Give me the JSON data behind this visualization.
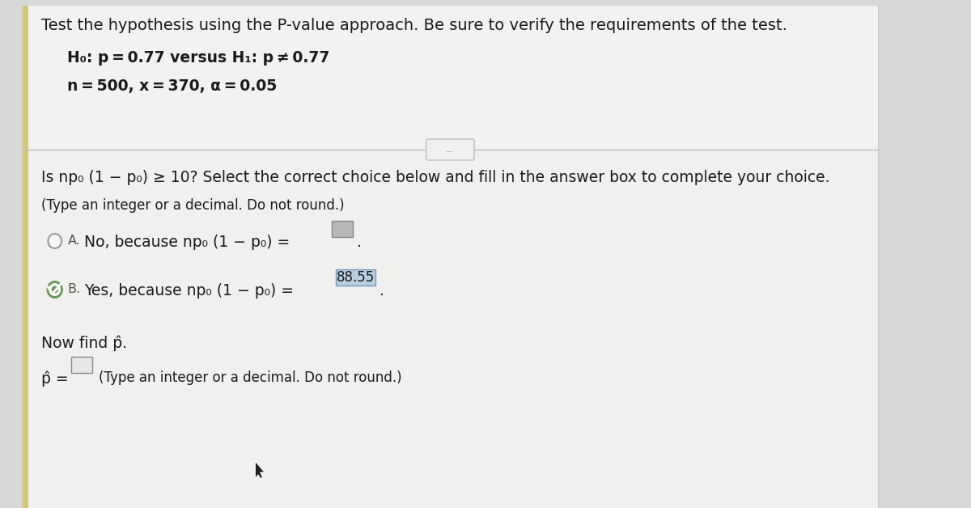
{
  "bg_top": "#f2f2f0",
  "bg_bottom": "#ebebea",
  "bg_overall": "#d8d8d6",
  "text_color": "#1a1a1a",
  "title": "Test the hypothesis using the P-value approach. Be sure to verify the requirements of the test.",
  "hyp1": "H₀: p = 0.77 versus H₁: p ≠ 0.77",
  "hyp2": "n = 500, x = 370, α = 0.05",
  "q1": "Is np₀ (1 − p₀) ≥ 10? Select the correct choice below and fill in the answer box to complete your choice.",
  "q2": "(Type an integer or a decimal. Do not round.)",
  "choiceA_prefix": "No, because np₀ (1 − p₀) =",
  "choiceB_prefix": "Yes, because np₀ (1 − p₀) =",
  "answer_B": "88.55",
  "now_find": "Now find p̂.",
  "p_hat_label": "p̂ =",
  "p_hat_note": "(Type an integer or a decimal. Do not round.)",
  "dots": "...",
  "box_A_color": "#b8b8b8",
  "box_B_color": "#b8cfe0",
  "box_phat_color": "#e8e8e8",
  "radio_unsel_edge": "#999999",
  "radio_sel_bg": "#6a9a5a",
  "left_strip_color": "#d4c878",
  "divider_color": "#c0c0c0",
  "title_size": 14,
  "body_size": 13.5,
  "small_size": 12
}
